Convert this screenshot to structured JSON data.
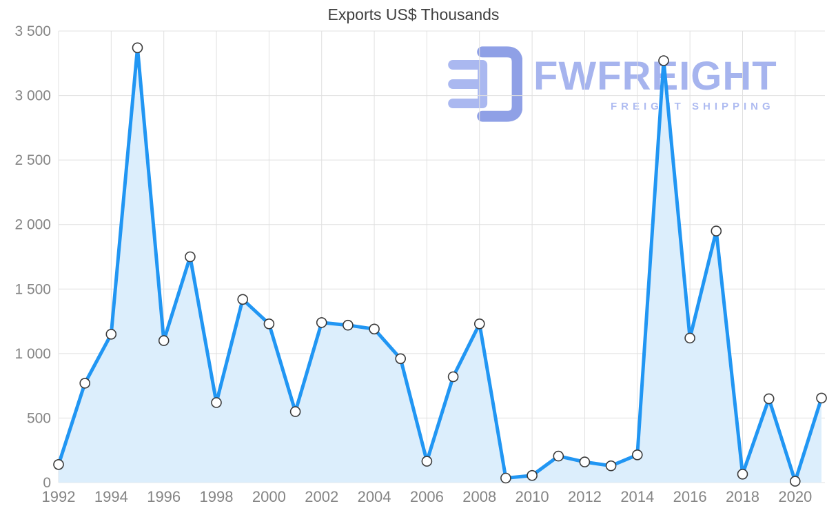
{
  "chart_data": {
    "type": "area",
    "title": "Exports US$ Thousands",
    "xlabel": "",
    "ylabel": "",
    "x": [
      1992,
      1993,
      1994,
      1995,
      1996,
      1997,
      1998,
      1999,
      2000,
      2001,
      2002,
      2003,
      2004,
      2005,
      2006,
      2007,
      2008,
      2009,
      2010,
      2011,
      2012,
      2013,
      2014,
      2015,
      2016,
      2017,
      2018,
      2019,
      2020,
      2021
    ],
    "values": [
      140,
      770,
      1150,
      3370,
      1100,
      1750,
      620,
      1420,
      1230,
      550,
      1240,
      1220,
      1190,
      960,
      165,
      820,
      1230,
      35,
      55,
      205,
      160,
      130,
      215,
      3270,
      1120,
      1950,
      65,
      650,
      10,
      655
    ],
    "ylim": [
      0,
      3500
    ],
    "y_ticks": [
      0,
      500,
      1000,
      1500,
      2000,
      2500,
      3000,
      3500
    ],
    "y_tick_labels": [
      "0",
      "500",
      "1 000",
      "1 500",
      "2 000",
      "2 500",
      "3 000",
      "3 500"
    ],
    "x_ticks": [
      1992,
      1994,
      1996,
      1998,
      2000,
      2002,
      2004,
      2006,
      2008,
      2010,
      2012,
      2014,
      2016,
      2018,
      2020
    ],
    "grid": "on",
    "legend": "none",
    "colors": {
      "line": "#2196f3",
      "fill": "#dceefc",
      "marker_fill": "#ffffff",
      "marker_stroke": "#3a3a3a",
      "grid": "#e0e0e0",
      "tick_text": "#858585",
      "title_text": "#3f3f3f",
      "watermark": "#a6b4ee",
      "watermark_logo_dark": "#8fa0e6",
      "watermark_logo_light": "#aab8f0"
    }
  },
  "watermark": {
    "brand": "FWFREIGHT",
    "tagline": "FREIGHT SHIPPING"
  }
}
